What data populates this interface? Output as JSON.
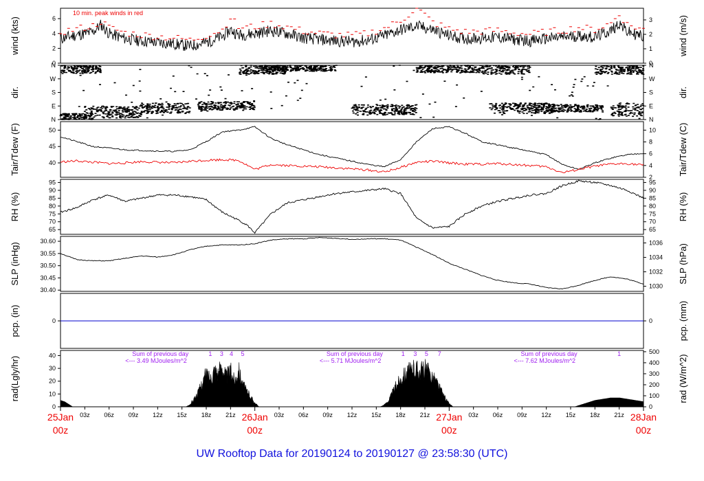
{
  "title": "UW Rooftop Data for 20190124  to  20190127 @ 23:58:30  (UTC)",
  "colors": {
    "line": "#000000",
    "peak": "#ee0000",
    "dew": "#ee0000",
    "precip": "#0000cc",
    "purple": "#a020f0",
    "title": "#1010dd"
  },
  "x_axis": {
    "range_hours": [
      0,
      72
    ],
    "hour_ticks": [
      "03z",
      "06z",
      "09z",
      "12z",
      "15z",
      "18z",
      "21z"
    ],
    "day_labels": [
      {
        "date": "25Jan",
        "hour": "00z",
        "at_hours": 0
      },
      {
        "date": "26Jan",
        "hour": "00z",
        "at_hours": 24
      },
      {
        "date": "27Jan",
        "hour": "00z",
        "at_hours": 48
      },
      {
        "date": "28Jan",
        "hour": "00z",
        "at_hours": 72
      }
    ]
  },
  "chart_data": [
    {
      "id": "wind",
      "type": "line",
      "ylabel_left": "wind (kts)",
      "ylabel_right": "wind (m/s)",
      "left_ticks": [
        0,
        2,
        4,
        6
      ],
      "right_ticks": [
        0,
        1,
        2,
        3
      ],
      "ylim": [
        0,
        7.4
      ],
      "annotation": "10 min. peak winds in red",
      "series": [
        {
          "role": "mean",
          "x": [
            0,
            2,
            4,
            5,
            6,
            8,
            10,
            12,
            14,
            16,
            18,
            20,
            21,
            22,
            24,
            26,
            28,
            30,
            32,
            34,
            36,
            38,
            40,
            42,
            44,
            46,
            48,
            50,
            52,
            54,
            56,
            58,
            60,
            62,
            64,
            66,
            68,
            69,
            70,
            72
          ],
          "values": [
            3.3,
            3.8,
            4.2,
            5.2,
            4.0,
            3.3,
            3.0,
            2.8,
            2.6,
            2.3,
            2.8,
            3.6,
            4.5,
            3.8,
            4.0,
            4.4,
            4.0,
            3.4,
            3.2,
            3.0,
            2.9,
            3.1,
            3.7,
            4.5,
            5.0,
            4.5,
            3.7,
            3.3,
            3.4,
            3.5,
            3.2,
            3.0,
            3.3,
            3.5,
            3.7,
            3.5,
            4.4,
            5.4,
            4.2,
            3.6
          ]
        },
        {
          "role": "peak",
          "x": [
            0,
            2,
            4,
            5,
            6,
            8,
            10,
            12,
            14,
            16,
            18,
            20,
            21,
            22,
            24,
            26,
            28,
            30,
            32,
            34,
            36,
            38,
            40,
            42,
            44,
            46,
            48,
            50,
            52,
            54,
            56,
            58,
            60,
            62,
            64,
            66,
            68,
            69,
            70,
            72
          ],
          "values": [
            4.2,
            4.6,
            5.0,
            5.6,
            4.8,
            4.1,
            3.8,
            3.6,
            3.4,
            3.1,
            3.7,
            4.5,
            6.2,
            4.8,
            4.9,
            5.3,
            4.9,
            4.3,
            4.0,
            3.8,
            3.7,
            4.0,
            4.7,
            5.7,
            7.4,
            5.5,
            4.6,
            4.2,
            4.3,
            4.4,
            4.1,
            3.9,
            4.2,
            4.4,
            4.8,
            4.5,
            5.4,
            6.6,
            5.2,
            4.5
          ]
        }
      ]
    },
    {
      "id": "dir",
      "type": "scatter",
      "ylabel_left": "dir.",
      "ylabel_right": "dir.",
      "tick_labels": [
        "N",
        "E",
        "S",
        "W",
        "N"
      ],
      "tick_values": [
        0,
        90,
        180,
        270,
        360
      ],
      "ylim": [
        0,
        360
      ],
      "clusters": [
        {
          "x": [
            0,
            5
          ],
          "y": [
            305,
            360
          ]
        },
        {
          "x": [
            0,
            4
          ],
          "y": [
            0,
            40
          ]
        },
        {
          "x": [
            3,
            10
          ],
          "y": [
            10,
            90
          ]
        },
        {
          "x": [
            10,
            16
          ],
          "y": [
            40,
            110
          ]
        },
        {
          "x": [
            17,
            24
          ],
          "y": [
            60,
            120
          ]
        },
        {
          "x": [
            22,
            28
          ],
          "y": [
            300,
            360
          ]
        },
        {
          "x": [
            25,
            34
          ],
          "y": [
            320,
            360
          ]
        },
        {
          "x": [
            36,
            44
          ],
          "y": [
            30,
            100
          ]
        },
        {
          "x": [
            44,
            52
          ],
          "y": [
            310,
            360
          ]
        },
        {
          "x": [
            52,
            58
          ],
          "y": [
            300,
            360
          ]
        },
        {
          "x": [
            53,
            61
          ],
          "y": [
            40,
            110
          ]
        },
        {
          "x": [
            60,
            67
          ],
          "y": [
            50,
            100
          ]
        },
        {
          "x": [
            66,
            72
          ],
          "y": [
            300,
            360
          ]
        },
        {
          "x": [
            68,
            72
          ],
          "y": [
            20,
            110
          ]
        }
      ]
    },
    {
      "id": "temp",
      "type": "line",
      "ylabel_left": "Tair/Tdew (F)",
      "ylabel_right": "Tair/Tdew (C)",
      "left_ticks": [
        40,
        45,
        50
      ],
      "right_ticks_c": [
        2,
        4,
        6,
        8,
        10
      ],
      "ylim": [
        35.6,
        52.6
      ],
      "series": [
        {
          "role": "air",
          "x": [
            0,
            2,
            4,
            6,
            8,
            10,
            12,
            14,
            16,
            18,
            20,
            22,
            24,
            26,
            28,
            30,
            32,
            34,
            36,
            38,
            40,
            42,
            44,
            46,
            48,
            50,
            52,
            54,
            56,
            58,
            60,
            62,
            64,
            66,
            68,
            70,
            72
          ],
          "values": [
            48.0,
            46.5,
            45.0,
            44.5,
            44.0,
            43.8,
            43.6,
            43.5,
            44.0,
            46.5,
            49.5,
            50.0,
            51.0,
            47.5,
            45.5,
            44.0,
            42.5,
            41.5,
            40.5,
            39.5,
            38.8,
            41.0,
            46.5,
            50.5,
            51.0,
            49.0,
            46.5,
            45.5,
            44.5,
            43.5,
            42.5,
            39.5,
            38.0,
            40.0,
            41.5,
            42.5,
            43.0
          ]
        },
        {
          "role": "dew",
          "x": [
            0,
            2,
            4,
            6,
            8,
            10,
            12,
            14,
            16,
            18,
            20,
            22,
            24,
            26,
            28,
            30,
            32,
            34,
            36,
            38,
            40,
            42,
            44,
            46,
            48,
            50,
            52,
            54,
            56,
            58,
            60,
            62,
            64,
            66,
            68,
            70,
            72
          ],
          "values": [
            40.3,
            40.6,
            40.2,
            39.8,
            40.0,
            40.4,
            40.2,
            40.0,
            40.5,
            40.8,
            41.0,
            40.8,
            38.0,
            39.5,
            39.2,
            39.0,
            38.8,
            38.5,
            38.2,
            37.8,
            37.2,
            38.6,
            40.2,
            40.5,
            40.0,
            39.6,
            39.6,
            39.8,
            39.5,
            39.2,
            38.8,
            37.0,
            38.0,
            39.0,
            39.6,
            39.8,
            39.3
          ]
        }
      ]
    },
    {
      "id": "rh",
      "type": "line",
      "ylabel_left": "RH (%)",
      "ylabel_right": "RH (%)",
      "ticks": [
        65,
        70,
        75,
        80,
        85,
        90,
        95
      ],
      "ylim": [
        62,
        97
      ],
      "series": [
        {
          "role": "rh",
          "x": [
            0,
            2,
            4,
            6,
            8,
            10,
            12,
            14,
            16,
            18,
            20,
            22,
            23,
            24,
            26,
            28,
            30,
            32,
            34,
            36,
            38,
            40,
            42,
            44,
            46,
            48,
            50,
            52,
            54,
            56,
            58,
            60,
            62,
            64,
            66,
            68,
            70,
            72
          ],
          "values": [
            76,
            79,
            84,
            87,
            83,
            85,
            87,
            87,
            86,
            84,
            76,
            71,
            68,
            63,
            75,
            82,
            84,
            86,
            88,
            89,
            90,
            91,
            88,
            72,
            66,
            67,
            75,
            80,
            83,
            85,
            87,
            88,
            93,
            96,
            95,
            93,
            90,
            85
          ]
        }
      ]
    },
    {
      "id": "slp",
      "type": "line",
      "ylabel_left": "SLP (inHg)",
      "ylabel_right": "SLP (hPa)",
      "left_ticks": [
        30.4,
        30.45,
        30.5,
        30.55,
        30.6
      ],
      "right_ticks_hpa": [
        1030,
        1032,
        1034,
        1036
      ],
      "ylim": [
        30.395,
        30.62
      ],
      "series": [
        {
          "role": "slp",
          "x": [
            0,
            2,
            4,
            6,
            8,
            10,
            12,
            14,
            16,
            18,
            20,
            22,
            24,
            26,
            28,
            30,
            32,
            34,
            36,
            38,
            40,
            42,
            44,
            46,
            48,
            50,
            52,
            54,
            56,
            58,
            60,
            62,
            64,
            66,
            68,
            70,
            72
          ],
          "values": [
            30.55,
            30.525,
            30.52,
            30.52,
            30.53,
            30.54,
            30.535,
            30.545,
            30.565,
            30.58,
            30.585,
            30.585,
            30.59,
            30.605,
            30.61,
            30.61,
            30.615,
            30.612,
            30.608,
            30.61,
            30.61,
            30.605,
            30.575,
            30.545,
            30.51,
            30.485,
            30.46,
            30.44,
            30.43,
            30.425,
            30.41,
            30.405,
            30.42,
            30.44,
            30.455,
            30.445,
            30.425
          ]
        }
      ]
    },
    {
      "id": "precip",
      "type": "line",
      "ylabel_left": "pcp. (in)",
      "ylabel_right": "pcp. (mm)",
      "left_ticks": [
        0
      ],
      "right_ticks": [
        0
      ],
      "ylim": [
        -1,
        1
      ],
      "series": [
        {
          "role": "pcp",
          "x": [
            0,
            72
          ],
          "values": [
            0,
            0
          ]
        }
      ]
    },
    {
      "id": "rad",
      "type": "area",
      "ylabel_left": "rad(Lgly/hr)",
      "ylabel_right": "rad (W/m^2)",
      "left_ticks": [
        0,
        10,
        20,
        30,
        40
      ],
      "right_ticks": [
        0,
        100,
        200,
        300,
        400,
        500
      ],
      "ylim": [
        0,
        44
      ],
      "series": [
        {
          "role": "day1",
          "x": [
            0,
            0.5,
            1,
            1.5
          ],
          "values": [
            5,
            4,
            2,
            0
          ]
        },
        {
          "role": "day2",
          "x": [
            15.5,
            16,
            16.5,
            17,
            17.5,
            18,
            18.5,
            19,
            19.5,
            20,
            20.5,
            21,
            21.5,
            22,
            22.5,
            23,
            23.5,
            24,
            24.5
          ],
          "values": [
            0,
            2,
            8,
            14,
            24,
            33,
            28,
            38,
            34,
            40,
            30,
            36,
            26,
            38,
            22,
            16,
            10,
            4,
            0
          ]
        },
        {
          "role": "day3",
          "x": [
            39.5,
            40,
            40.5,
            41,
            41.5,
            42,
            42.5,
            43,
            43.5,
            44,
            44.5,
            45,
            45.5,
            46,
            46.5,
            47,
            47.5,
            48,
            48.5
          ],
          "values": [
            0,
            2,
            6,
            14,
            22,
            28,
            33,
            35,
            37,
            38,
            36,
            38,
            34,
            30,
            24,
            16,
            9,
            3,
            0
          ]
        },
        {
          "role": "day4",
          "x": [
            63.5,
            64,
            65,
            66,
            67,
            68,
            69,
            70,
            71,
            72
          ],
          "values": [
            0,
            1,
            3,
            5,
            6,
            7,
            7,
            6,
            5,
            4
          ]
        }
      ],
      "markers_top": [
        {
          "labels": [
            "1",
            "3",
            "4",
            "5"
          ],
          "x": [
            18.5,
            19.9,
            21.1,
            22.5
          ]
        },
        {
          "labels": [
            "1",
            "3",
            "5",
            "7"
          ],
          "x": [
            42.3,
            43.8,
            45.2,
            46.8
          ]
        },
        {
          "labels": [
            "1"
          ],
          "x": [
            69.0
          ]
        }
      ],
      "daily_sums": [
        {
          "line1": "Sum of previous day",
          "line2": "<--- 3.49 MJoules/m^2",
          "x": 8
        },
        {
          "line1": "Sum of previous day",
          "line2": "<--- 5.71 MJoules/m^2",
          "x": 32
        },
        {
          "line1": "Sum of previous day",
          "line2": "<--- 7.62 MJoules/m^2",
          "x": 56
        }
      ]
    }
  ]
}
